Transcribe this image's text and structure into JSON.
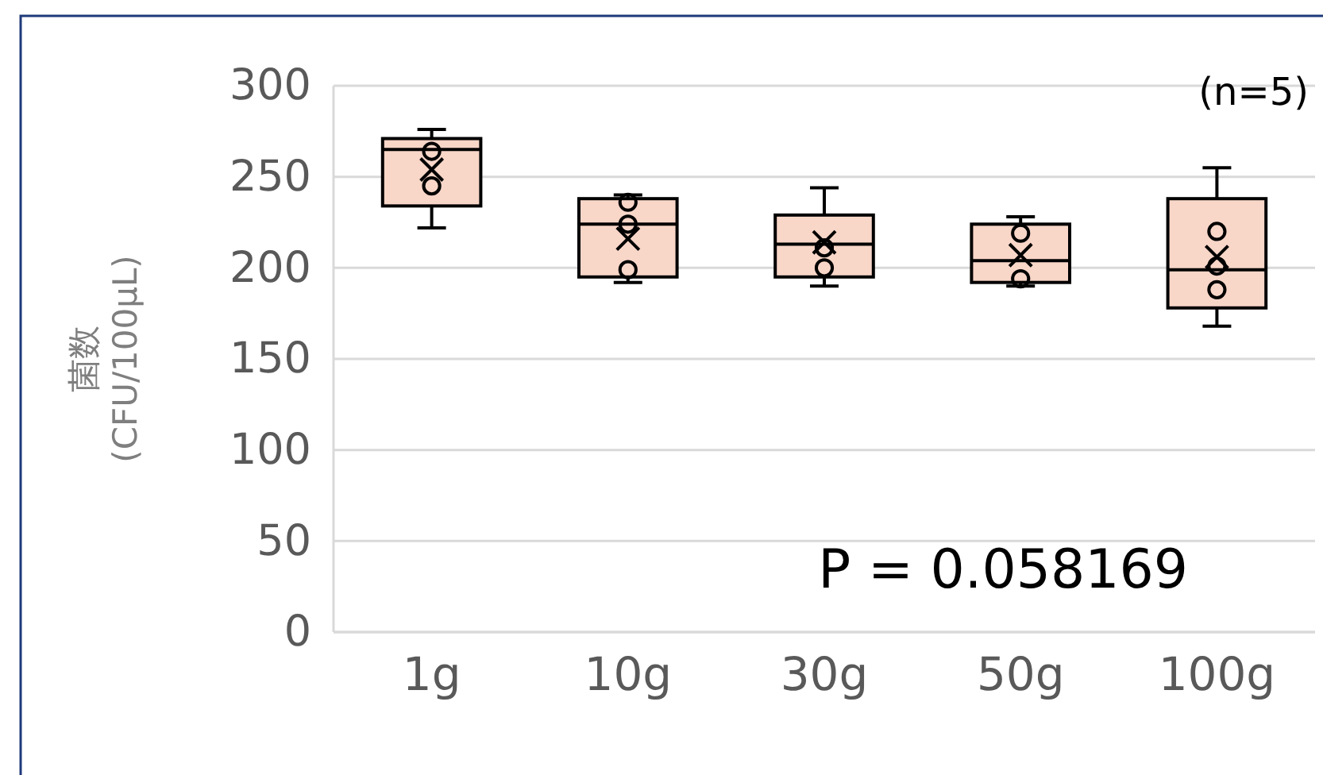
{
  "chart_data": {
    "type": "box",
    "ylabel": "菌数\n(CFU/100μL)",
    "categories": [
      "1g",
      "10g",
      "30g",
      "50g",
      "100g"
    ],
    "boxes": [
      {
        "low": 222,
        "q1": 234,
        "median": 265,
        "q3": 271,
        "high": 276,
        "mean": 254
      },
      {
        "low": 192,
        "q1": 195,
        "median": 224,
        "q3": 238,
        "high": 240,
        "mean": 216
      },
      {
        "low": 190,
        "q1": 195,
        "median": 213,
        "q3": 229,
        "high": 244,
        "mean": 214
      },
      {
        "low": 190,
        "q1": 192,
        "median": 204,
        "q3": 224,
        "high": 228,
        "mean": 207
      },
      {
        "low": 168,
        "q1": 178,
        "median": 199,
        "q3": 238,
        "high": 255,
        "mean": 206
      }
    ],
    "color": "#f8d6c8",
    "series": [
      {
        "type": "scatter",
        "marker": "circle",
        "color": "#000000",
        "x": [
          "1g",
          "1g",
          "10g",
          "10g",
          "10g",
          "30g",
          "30g",
          "50g",
          "50g",
          "100g",
          "100g",
          "100g"
        ],
        "values": [
          264,
          245,
          236,
          224,
          199,
          211,
          200,
          219,
          194,
          220,
          201,
          188
        ]
      }
    ],
    "ylim": [
      0,
      300
    ],
    "yticks": [
      0,
      50,
      100,
      150,
      200,
      250,
      300
    ],
    "grid": "y",
    "annotations": [
      "(n=5)",
      "P = 0.058169"
    ]
  }
}
